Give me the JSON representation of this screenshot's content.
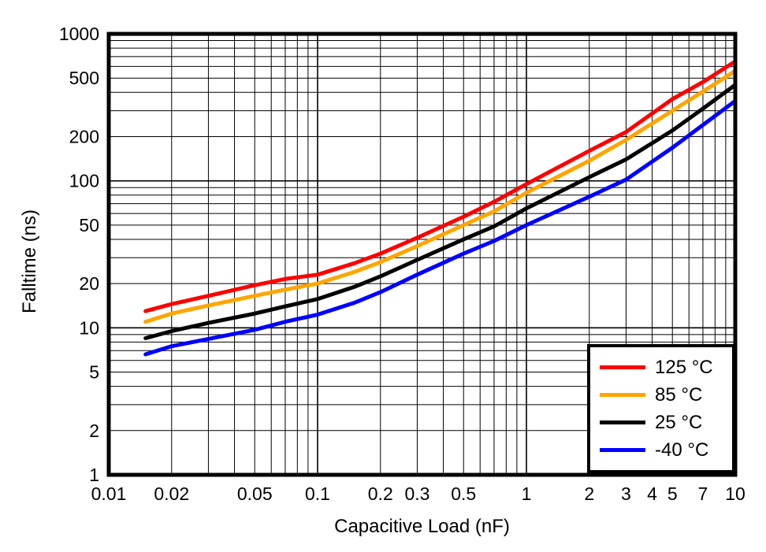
{
  "chart_data": {
    "type": "line",
    "title": "",
    "xlabel": "Capacitive Load (nF)",
    "ylabel": "Falltime (ns)",
    "x_scale": "log",
    "y_scale": "log",
    "xlim": [
      0.01,
      10
    ],
    "ylim": [
      1,
      1000
    ],
    "grid": "log minor grid on, both axes, black",
    "legend_position": "bottom-right inside plot",
    "x_ticks": [
      {
        "v": 0.01,
        "t": "0.01"
      },
      {
        "v": 0.02,
        "t": "0.02"
      },
      {
        "v": 0.05,
        "t": "0.05"
      },
      {
        "v": 0.1,
        "t": "0.1"
      },
      {
        "v": 0.2,
        "t": "0.2"
      },
      {
        "v": 0.3,
        "t": "0.3"
      },
      {
        "v": 0.5,
        "t": "0.5"
      },
      {
        "v": 1,
        "t": "1"
      },
      {
        "v": 2,
        "t": "2"
      },
      {
        "v": 3,
        "t": "3"
      },
      {
        "v": 4,
        "t": "4"
      },
      {
        "v": 5,
        "t": "5"
      },
      {
        "v": 7,
        "t": "7"
      },
      {
        "v": 10,
        "t": "10"
      }
    ],
    "y_ticks": [
      {
        "v": 1000,
        "t": "1000"
      },
      {
        "v": 500,
        "t": "500"
      },
      {
        "v": 200,
        "t": "200"
      },
      {
        "v": 100,
        "t": "100"
      },
      {
        "v": 50,
        "t": "50"
      },
      {
        "v": 20,
        "t": "20"
      },
      {
        "v": 10,
        "t": "10"
      },
      {
        "v": 5,
        "t": "5"
      },
      {
        "v": 2,
        "t": "2"
      },
      {
        "v": 1,
        "t": "1"
      }
    ],
    "x": [
      0.015,
      0.02,
      0.03,
      0.05,
      0.07,
      0.1,
      0.15,
      0.2,
      0.3,
      0.5,
      0.7,
      1,
      2,
      3,
      5,
      7,
      10
    ],
    "series": [
      {
        "name": "125 °C",
        "color": "#ff0000",
        "values": [
          13,
          14.5,
          16.5,
          19.5,
          21.5,
          23,
          27.5,
          32,
          41,
          57,
          72,
          95,
          160,
          215,
          360,
          470,
          650
        ]
      },
      {
        "name": "85 °C",
        "color": "#ffa500",
        "values": [
          11,
          12.5,
          14.2,
          16.5,
          18.2,
          20,
          24,
          28,
          36,
          50,
          62,
          83,
          137,
          190,
          300,
          405,
          560
        ]
      },
      {
        "name": "25 °C",
        "color": "#000000",
        "values": [
          8.5,
          9.5,
          10.8,
          12.5,
          14,
          15.7,
          19,
          22.4,
          29,
          40,
          49,
          65,
          106,
          140,
          220,
          310,
          450
        ]
      },
      {
        "name": "-40 °C",
        "color": "#0000ff",
        "values": [
          6.6,
          7.5,
          8.4,
          9.7,
          11,
          12.3,
          14.8,
          17.5,
          23,
          32,
          39,
          50,
          78,
          102,
          168,
          240,
          350
        ]
      }
    ]
  }
}
